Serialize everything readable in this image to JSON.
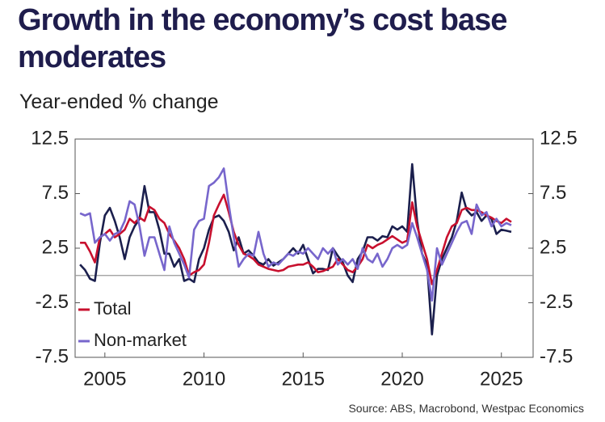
{
  "chart_data": {
    "type": "line",
    "title": "Growth in the economy’s cost base moderates",
    "subtitle": "Year-ended % change",
    "source": "Source: ABS, Macrobond, Westpac Economics",
    "x": [
      2003.75,
      2004,
      2004.25,
      2004.5,
      2004.75,
      2005,
      2005.25,
      2005.5,
      2005.75,
      2006,
      2006.25,
      2006.5,
      2006.75,
      2007,
      2007.25,
      2007.5,
      2007.75,
      2008,
      2008.25,
      2008.5,
      2008.75,
      2009,
      2009.25,
      2009.5,
      2009.75,
      2010,
      2010.25,
      2010.5,
      2010.75,
      2011,
      2011.25,
      2011.5,
      2011.75,
      2012,
      2012.25,
      2012.5,
      2012.75,
      2013,
      2013.25,
      2013.5,
      2013.75,
      2014,
      2014.25,
      2014.5,
      2014.75,
      2015,
      2015.25,
      2015.5,
      2015.75,
      2016,
      2016.25,
      2016.5,
      2016.75,
      2017,
      2017.25,
      2017.5,
      2017.75,
      2018,
      2018.25,
      2018.5,
      2018.75,
      2019,
      2019.25,
      2019.5,
      2019.75,
      2020,
      2020.25,
      2020.5,
      2020.75,
      2021,
      2021.25,
      2021.5,
      2021.75,
      2022,
      2022.25,
      2022.5,
      2022.75,
      2023,
      2023.25,
      2023.5,
      2023.75,
      2024,
      2024.25,
      2024.5,
      2024.75,
      2025,
      2025.25,
      2025.5
    ],
    "series": [
      {
        "name": "Total",
        "color": "#c8102e",
        "legend": true,
        "values": [
          3.0,
          3.0,
          2.2,
          1.2,
          3.5,
          3.8,
          4.2,
          3.5,
          3.8,
          4.2,
          5.2,
          4.8,
          5.3,
          5.0,
          6.3,
          6.0,
          5.2,
          4.8,
          3.8,
          3.2,
          2.5,
          1.5,
          0.0,
          0.3,
          0.5,
          1.0,
          3.0,
          5.5,
          6.5,
          7.4,
          5.8,
          4.0,
          2.8,
          2.0,
          1.8,
          1.5,
          1.0,
          0.8,
          0.6,
          0.5,
          0.4,
          0.5,
          0.8,
          0.9,
          1.0,
          1.0,
          1.2,
          0.8,
          0.3,
          0.4,
          0.6,
          0.8,
          1.5,
          1.0,
          0.5,
          0.3,
          0.8,
          1.5,
          2.8,
          2.5,
          2.8,
          3.0,
          3.3,
          3.6,
          3.3,
          3.0,
          3.2,
          6.7,
          4.5,
          3.0,
          1.5,
          -0.8,
          0.5,
          2.0,
          3.5,
          4.5,
          4.8,
          6.0,
          6.2,
          6.0,
          6.0,
          5.8,
          5.5,
          5.3,
          5.0,
          4.8,
          5.2,
          4.9
        ]
      },
      {
        "name": "Non-market",
        "color": "#7766cc",
        "legend": true,
        "values": [
          5.7,
          5.5,
          5.7,
          3.0,
          3.5,
          3.8,
          3.2,
          3.8,
          4.0,
          5.0,
          6.8,
          6.5,
          4.5,
          1.8,
          3.5,
          3.5,
          2.0,
          0.5,
          4.5,
          3.0,
          2.0,
          1.0,
          -0.2,
          4.2,
          5.0,
          5.2,
          8.2,
          8.5,
          9.0,
          9.8,
          6.5,
          3.5,
          0.8,
          1.5,
          2.0,
          1.8,
          4.0,
          2.0,
          0.8,
          1.2,
          1.0,
          1.5,
          2.0,
          1.8,
          2.2,
          2.0,
          2.5,
          2.0,
          1.5,
          2.5,
          2.0,
          2.5,
          1.0,
          1.5,
          1.0,
          1.5,
          0.6,
          2.5,
          1.5,
          1.2,
          2.0,
          0.8,
          1.5,
          2.5,
          2.8,
          2.5,
          2.8,
          4.8,
          3.5,
          2.0,
          0.5,
          -2.3,
          2.5,
          1.0,
          2.0,
          3.0,
          4.0,
          4.8,
          5.0,
          3.8,
          6.5,
          5.5,
          5.8,
          4.5,
          5.2,
          4.5,
          4.8,
          4.6
        ]
      },
      {
        "color": "#1b1f4d",
        "legend": false,
        "values": [
          1.0,
          0.5,
          -0.3,
          -0.5,
          3.0,
          5.5,
          6.2,
          5.0,
          3.5,
          1.5,
          3.5,
          4.5,
          5.2,
          8.2,
          5.8,
          5.8,
          4.2,
          2.0,
          2.0,
          0.8,
          1.5,
          -0.5,
          -0.3,
          -0.6,
          1.5,
          2.5,
          4.2,
          5.3,
          5.5,
          5.0,
          4.0,
          2.3,
          3.5,
          2.0,
          2.3,
          1.8,
          1.2,
          1.0,
          1.5,
          0.9,
          1.2,
          1.5,
          2.0,
          2.5,
          2.0,
          2.8,
          1.5,
          0.2,
          0.6,
          0.6,
          0.5,
          2.5,
          1.8,
          1.2,
          0.0,
          -0.6,
          1.5,
          2.2,
          3.5,
          3.5,
          3.2,
          3.6,
          3.5,
          4.5,
          4.2,
          4.5,
          4.0,
          10.2,
          5.0,
          2.0,
          1.0,
          -5.4,
          0.0,
          1.5,
          2.5,
          3.5,
          5.0,
          7.6,
          6.0,
          5.5,
          5.8,
          5.0,
          5.5,
          5.2,
          3.8,
          4.2,
          4.1,
          4.0
        ]
      }
    ],
    "xlim": [
      2003.5,
      2026.6
    ],
    "xticks": [
      2005,
      2010,
      2015,
      2020,
      2025
    ],
    "ylim": [
      -7.5,
      12.5
    ],
    "yticks": [
      12.5,
      7.5,
      2.5,
      -2.5,
      -7.5
    ],
    "y2lim": [
      -7.5,
      12.5
    ],
    "y2ticks": [
      12.5,
      7.5,
      2.5,
      -2.5,
      -7.5
    ],
    "legend": "lower-left",
    "zero_line": true
  }
}
